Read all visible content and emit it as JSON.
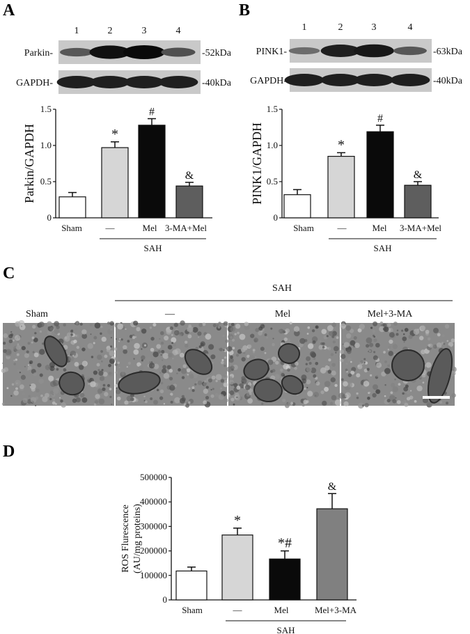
{
  "colors": {
    "sham": "#ffffff",
    "sah": "#d6d6d6",
    "mel": "#0a0a0a",
    "ma_mel": "#5e5e5e",
    "mel_3ma": "#808080",
    "axis": "#111111",
    "blot_bg": "#c9c9c9",
    "em_bg": "#8a8a8a"
  },
  "panels": {
    "A": "A",
    "B": "B",
    "C": "C",
    "D": "D"
  },
  "blotA": {
    "lanes": [
      "1",
      "2",
      "3",
      "4"
    ],
    "rows": [
      {
        "label": "Parkin-",
        "marker": "-52kDa",
        "intensity": [
          0.45,
          0.95,
          1.0,
          0.5
        ]
      },
      {
        "label": "GAPDH-",
        "marker": "-40kDa",
        "intensity": [
          0.85,
          0.85,
          0.85,
          0.85
        ]
      }
    ]
  },
  "blotB": {
    "lanes": [
      "1",
      "2",
      "3",
      "4"
    ],
    "rows": [
      {
        "label": "PINK1-",
        "marker": "-63kDa",
        "intensity": [
          0.3,
          0.85,
          0.9,
          0.45
        ]
      },
      {
        "label": "GAPDH-",
        "marker": "-40kDa",
        "intensity": [
          0.85,
          0.85,
          0.85,
          0.85
        ]
      }
    ]
  },
  "panelC": {
    "group": "SAH",
    "columns": [
      "Sham",
      "—",
      "Mel",
      "Mel+3-MA"
    ]
  },
  "chart_data": [
    {
      "id": "A",
      "type": "bar",
      "categories": [
        "Sham",
        "—",
        "Mel",
        "3-MA+Mel"
      ],
      "values": [
        0.29,
        0.97,
        1.28,
        0.44
      ],
      "errors": [
        0.06,
        0.08,
        0.09,
        0.05
      ],
      "annotations": [
        "",
        "*",
        "#",
        "&"
      ],
      "ylabel": "Parkin/GAPDH",
      "ylim": [
        0,
        1.5
      ],
      "yticks": [
        "0",
        "0.5",
        "1.0",
        "1.5"
      ],
      "group_label": "SAH"
    },
    {
      "id": "B",
      "type": "bar",
      "categories": [
        "Sham",
        "—",
        "Mel",
        "3-MA+Mel"
      ],
      "values": [
        0.32,
        0.85,
        1.19,
        0.45
      ],
      "errors": [
        0.07,
        0.05,
        0.09,
        0.05
      ],
      "annotations": [
        "",
        "*",
        "#",
        "&"
      ],
      "ylabel": "PINK1/GAPDH",
      "ylim": [
        0,
        1.5
      ],
      "yticks": [
        "0",
        "0.5",
        "1.0",
        "1.5"
      ],
      "group_label": "SAH"
    },
    {
      "id": "D",
      "type": "bar",
      "categories": [
        "Sham",
        "—",
        "Mel",
        "Mel+3-MA"
      ],
      "values": [
        118000,
        265000,
        167000,
        372000
      ],
      "errors": [
        16000,
        28000,
        33000,
        62000
      ],
      "annotations": [
        "",
        "*",
        "*#",
        "&"
      ],
      "ylabel": "ROS Flurescence",
      "ylabel2": "(AU/mg proteins)",
      "ylim": [
        0,
        500000
      ],
      "yticks": [
        "0",
        "100000",
        "200000",
        "300000",
        "400000",
        "500000"
      ],
      "group_label": "SAH"
    }
  ]
}
